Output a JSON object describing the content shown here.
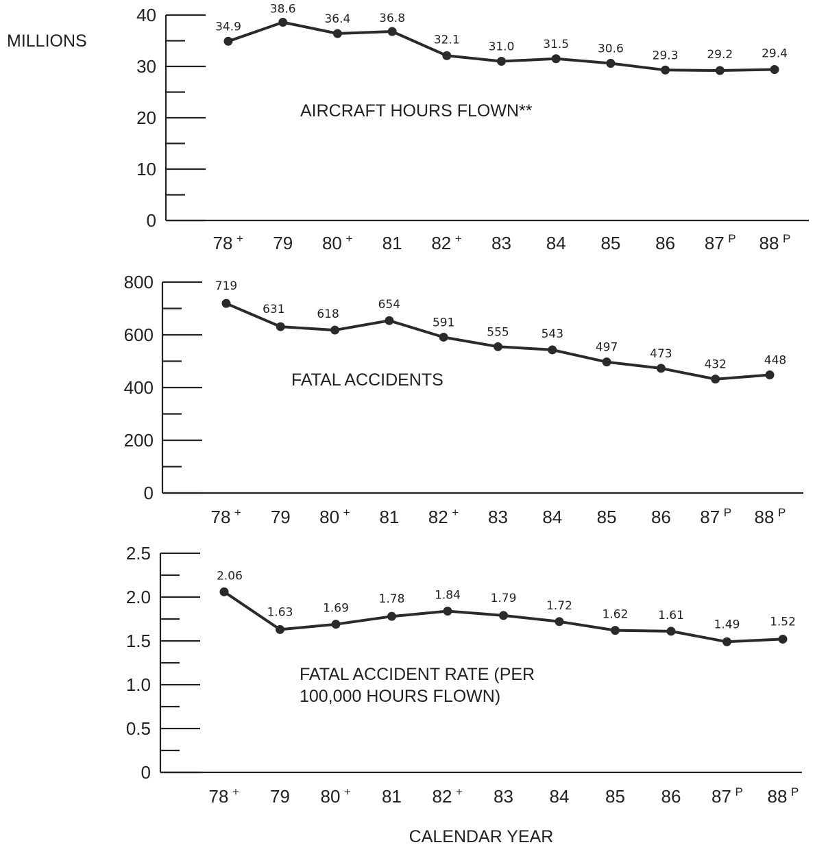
{
  "chart_data": [
    {
      "type": "line",
      "title": "AIRCRAFT HOURS FLOWN**",
      "ylabel": "MILLIONS",
      "categories": [
        {
          "year": "78",
          "sup": "+"
        },
        {
          "year": "79",
          "sup": ""
        },
        {
          "year": "80",
          "sup": "+"
        },
        {
          "year": "81",
          "sup": ""
        },
        {
          "year": "82",
          "sup": "+"
        },
        {
          "year": "83",
          "sup": ""
        },
        {
          "year": "84",
          "sup": ""
        },
        {
          "year": "85",
          "sup": ""
        },
        {
          "year": "86",
          "sup": ""
        },
        {
          "year": "87",
          "sup": "P"
        },
        {
          "year": "88",
          "sup": "P"
        }
      ],
      "values": [
        34.9,
        38.6,
        36.4,
        36.8,
        32.1,
        31.0,
        31.5,
        30.6,
        29.3,
        29.2,
        29.4
      ],
      "value_labels": [
        "34.9",
        "38.6",
        "36.4",
        "36.8",
        "32.1",
        "31.0",
        "31.5",
        "30.6",
        "29.3",
        "29.2",
        "29.4"
      ],
      "ylim": [
        0,
        40
      ],
      "yticks": [
        "0",
        "10",
        "20",
        "30",
        "40"
      ],
      "grid": false
    },
    {
      "type": "line",
      "title": "FATAL ACCIDENTS",
      "categories": [
        {
          "year": "78",
          "sup": "+"
        },
        {
          "year": "79",
          "sup": ""
        },
        {
          "year": "80",
          "sup": "+"
        },
        {
          "year": "81",
          "sup": ""
        },
        {
          "year": "82",
          "sup": "+"
        },
        {
          "year": "83",
          "sup": ""
        },
        {
          "year": "84",
          "sup": ""
        },
        {
          "year": "85",
          "sup": ""
        },
        {
          "year": "86",
          "sup": ""
        },
        {
          "year": "87",
          "sup": "P"
        },
        {
          "year": "88",
          "sup": "P"
        }
      ],
      "values": [
        719,
        631,
        618,
        654,
        591,
        555,
        543,
        497,
        473,
        432,
        448
      ],
      "value_labels": [
        "719",
        "631",
        "618",
        "654",
        "591",
        "555",
        "543",
        "497",
        "473",
        "432",
        "448"
      ],
      "ylim": [
        0,
        800
      ],
      "yticks": [
        "0",
        "200",
        "400",
        "600",
        "800"
      ],
      "grid": false
    },
    {
      "type": "line",
      "title": "FATAL ACCIDENT RATE (PER 100,000 HOURS FLOWN)",
      "title_lines": [
        "FATAL ACCIDENT RATE (PER",
        "100,000 HOURS FLOWN)"
      ],
      "xlabel": "CALENDAR YEAR",
      "categories": [
        {
          "year": "78",
          "sup": "+"
        },
        {
          "year": "79",
          "sup": ""
        },
        {
          "year": "80",
          "sup": "+"
        },
        {
          "year": "81",
          "sup": ""
        },
        {
          "year": "82",
          "sup": "+"
        },
        {
          "year": "83",
          "sup": ""
        },
        {
          "year": "84",
          "sup": ""
        },
        {
          "year": "85",
          "sup": ""
        },
        {
          "year": "86",
          "sup": ""
        },
        {
          "year": "87",
          "sup": "P"
        },
        {
          "year": "88",
          "sup": "P"
        }
      ],
      "values": [
        2.06,
        1.63,
        1.69,
        1.78,
        1.84,
        1.79,
        1.72,
        1.62,
        1.61,
        1.49,
        1.52
      ],
      "value_labels": [
        "2.06",
        "1.63",
        "1.69",
        "1.78",
        "1.84",
        "1.79",
        "1.72",
        "1.62",
        "1.61",
        "1.49",
        "1.52"
      ],
      "ylim": [
        0,
        2.5
      ],
      "yticks": [
        "0",
        "0.5",
        "1.0",
        "1.5",
        "2.0",
        "2.5"
      ],
      "grid": false
    }
  ]
}
